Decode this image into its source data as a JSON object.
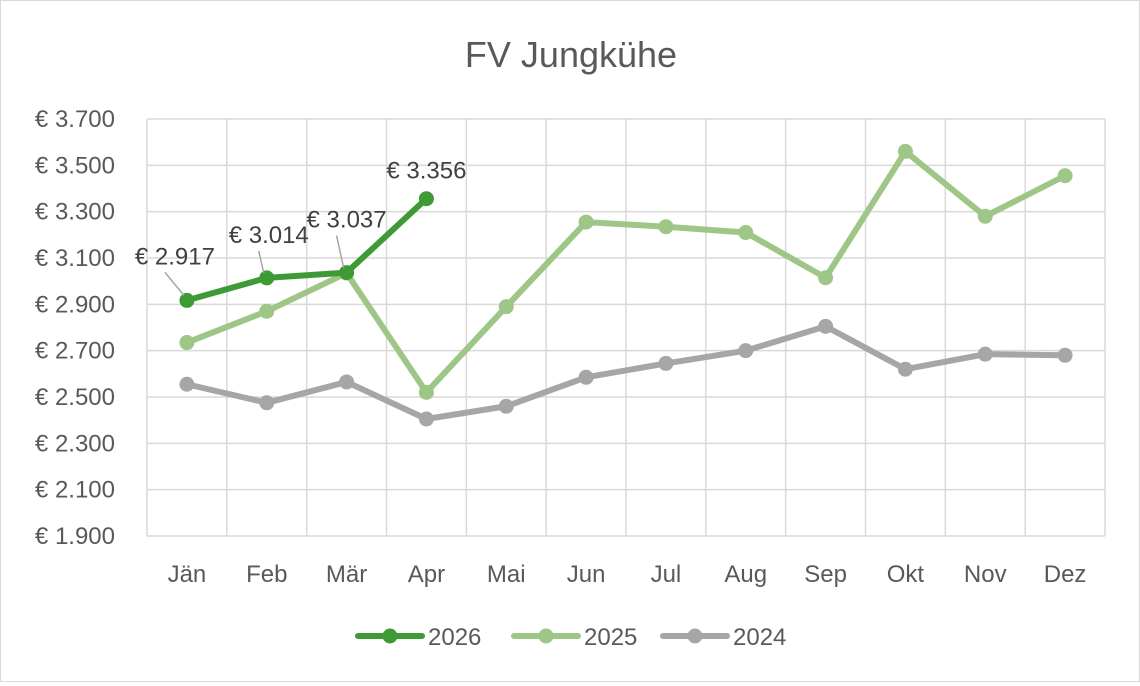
{
  "chart_data": {
    "type": "line",
    "title": "FV Jungkühe",
    "xlabel": "",
    "ylabel": "",
    "categories": [
      "Jän",
      "Feb",
      "Mär",
      "Apr",
      "Mai",
      "Jun",
      "Jul",
      "Aug",
      "Sep",
      "Okt",
      "Nov",
      "Dez"
    ],
    "ylim": [
      1900,
      3700
    ],
    "yticks": [
      1900,
      2100,
      2300,
      2500,
      2700,
      2900,
      3100,
      3300,
      3500,
      3700
    ],
    "ytick_labels": [
      "€ 1.900",
      "€ 2.100",
      "€ 2.300",
      "€ 2.500",
      "€ 2.700",
      "€ 2.900",
      "€ 3.100",
      "€ 3.300",
      "€ 3.500",
      "€ 3.700"
    ],
    "grid": true,
    "legend_position": "bottom",
    "series": [
      {
        "name": "2026",
        "color": "#3e9a35",
        "values": [
          2917,
          3014,
          3037,
          3356,
          null,
          null,
          null,
          null,
          null,
          null,
          null,
          null
        ],
        "data_labels": [
          "€ 2.917",
          "€ 3.014",
          "€ 3.037",
          "€ 3.356"
        ]
      },
      {
        "name": "2025",
        "color": "#9dc687",
        "values": [
          2735,
          2870,
          3035,
          2520,
          2890,
          3255,
          3235,
          3210,
          3015,
          3560,
          3280,
          3455
        ]
      },
      {
        "name": "2024",
        "color": "#a6a6a6",
        "values": [
          2555,
          2475,
          2565,
          2405,
          2460,
          2585,
          2645,
          2700,
          2805,
          2620,
          2685,
          2680
        ]
      }
    ]
  }
}
